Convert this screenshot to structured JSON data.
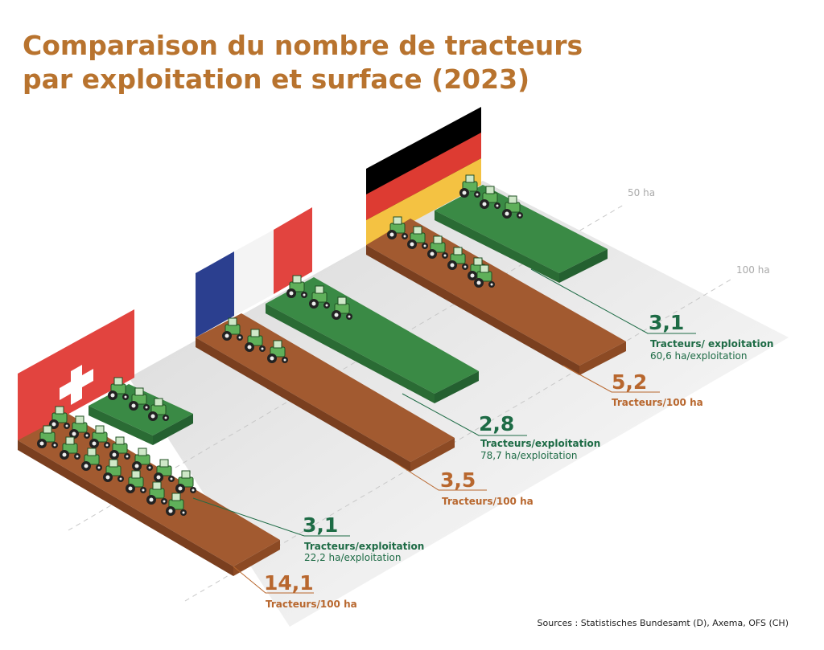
{
  "title": [
    "Comparaison du nombre de tracteurs",
    "par exploitation et surface (2023)"
  ],
  "axis": [
    "50 ha",
    "100 ha"
  ],
  "countries": [
    {
      "tractors_per_farm": "3,1",
      "tractors_per_farm_label": "Tracteurs/exploitation",
      "ha_per_farm": "22,2 ha/exploitation",
      "tractors_per_100ha": "14,1",
      "tractors_per_100ha_label": "Tracteurs/100 ha"
    },
    {
      "tractors_per_farm": "2,8",
      "tractors_per_farm_label": "Tracteurs/exploitation",
      "ha_per_farm": "78,7 ha/exploitation",
      "tractors_per_100ha": "3,5",
      "tractors_per_100ha_label": "Tracteurs/100 ha"
    },
    {
      "tractors_per_farm": "3,1",
      "tractors_per_farm_label": "Tracteurs/ exploitation",
      "ha_per_farm": "60,6 ha/exploitation",
      "tractors_per_100ha": "5,2",
      "tractors_per_100ha_label": "Tracteurs/100 ha"
    }
  ],
  "source": "Sources : Statistisches Bundesamt (D), Axema, OFS (CH)"
}
